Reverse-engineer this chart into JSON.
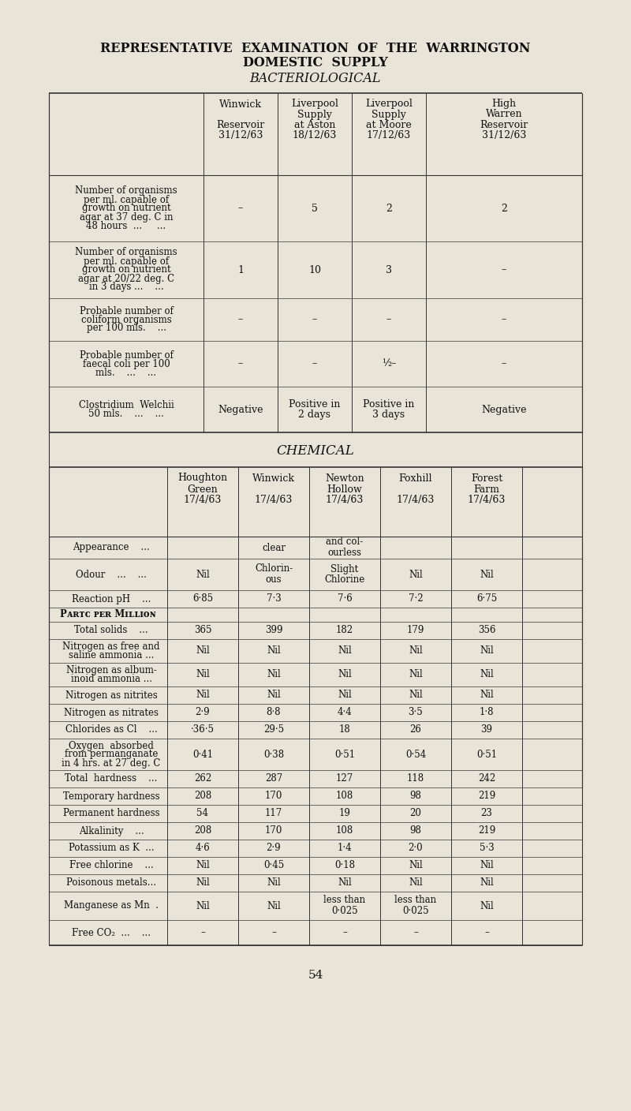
{
  "bg_color": "#e8e4d8",
  "title_line1": "REPRESENTATIVE  EXAMINATION  OF  THE  WARRINGTON",
  "title_line2": "DOMESTIC  SUPPLY",
  "title_line3": "BACTERIOLOGICAL",
  "page_number": "54",
  "chem_title": "CHEMICAL",
  "bact_col_headers": [
    [
      "Winwick",
      "",
      "Reservoir",
      "31/12/63"
    ],
    [
      "Liverpool",
      "Supply",
      "at Aston",
      "18/12/63"
    ],
    [
      "Liverpool",
      "Supply",
      "at Moore",
      "17/12/63"
    ],
    [
      "High",
      "Warren",
      "Reservoir",
      "31/12/63"
    ]
  ],
  "chem_col_headers": [
    [
      "Houghton",
      "Green",
      "17/4/63"
    ],
    [
      "Winwick",
      "",
      "17/4/63"
    ],
    [
      "Newton",
      "Hollow",
      "17/4/63"
    ],
    [
      "Foxhill",
      "",
      "17/4/63"
    ],
    [
      "Forest",
      "Farm",
      "17/4/63"
    ]
  ]
}
